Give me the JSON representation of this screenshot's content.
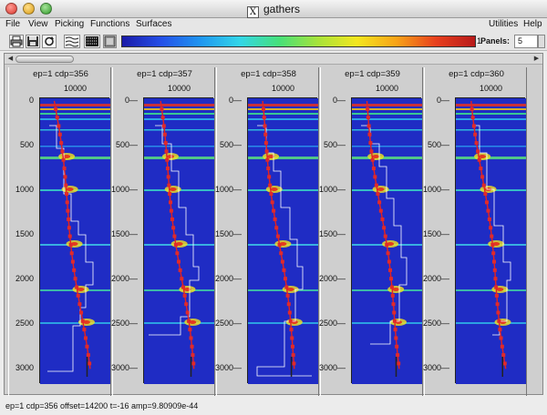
{
  "window": {
    "title": "gathers"
  },
  "menu": {
    "file": "File",
    "view": "View",
    "picking": "Picking",
    "functions": "Functions",
    "surfaces": "Surfaces",
    "utilities": "Utilities",
    "help": "Help"
  },
  "toolbar": {
    "colorbar_min": "0",
    "colorbar_max": "1",
    "panels_label": "Panels:",
    "panels_value": "5",
    "icons": [
      "print-icon",
      "save-icon",
      "reload-icon",
      "traces-icon",
      "density-icon",
      "colorbar-icon"
    ]
  },
  "axis": {
    "x_tick": "10000",
    "y_ticks": [
      "0",
      "500",
      "1000",
      "1500",
      "2000",
      "2500",
      "3000"
    ],
    "y_values": [
      0,
      500,
      1000,
      1500,
      2000,
      2500,
      3000
    ]
  },
  "panels": [
    {
      "title": "ep=1 cdp=356"
    },
    {
      "title": "ep=1 cdp=357"
    },
    {
      "title": "ep=1 cdp=358"
    },
    {
      "title": "ep=1 cdp=359"
    },
    {
      "title": "ep=1 cdp=360"
    }
  ],
  "colors": {
    "background": "#1f2cc4",
    "pick_line": "#e62020",
    "pick_marker": "#e02a2a",
    "interval_line": "#ffffff"
  },
  "status": "ep=1 cdp=356  offset=14200 t=-16 amp=9.80909e-44"
}
